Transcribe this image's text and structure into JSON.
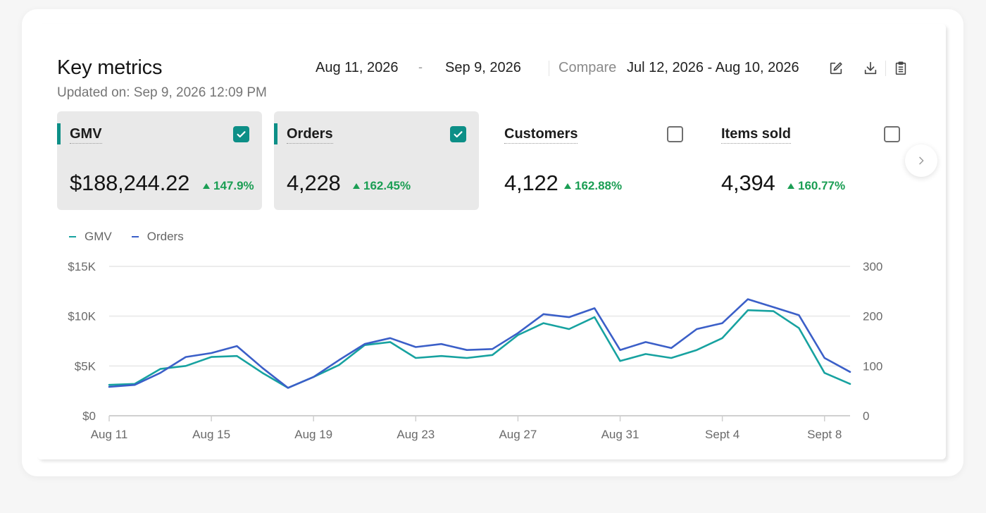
{
  "header": {
    "title": "Key metrics",
    "updated": "Updated on: Sep 9, 2026 12:09 PM",
    "date_start": "Aug 11, 2026",
    "date_separator": "-",
    "date_end": "Sep 9, 2026",
    "compare_label": "Compare",
    "compare_range": "Jul 12, 2026 - Aug 10, 2026",
    "icons": [
      "edit-icon",
      "download-icon",
      "clipboard-icon"
    ]
  },
  "metrics": [
    {
      "label": "GMV",
      "value": "$188,244.22",
      "change": "147.9%",
      "selected": true
    },
    {
      "label": "Orders",
      "value": "4,228",
      "change": "162.45%",
      "selected": true
    },
    {
      "label": "Customers",
      "value": "4,122",
      "change": "162.88%",
      "selected": false
    },
    {
      "label": "Items sold",
      "value": "4,394",
      "change": "160.77%",
      "selected": false
    }
  ],
  "colors": {
    "teal": "#17a2a0",
    "blue": "#3b5fc8",
    "accent": "#0d8f87",
    "positive": "#1b9e54"
  },
  "chart_data": {
    "type": "line",
    "legend": [
      "GMV",
      "Orders"
    ],
    "legend_position": "top-left",
    "x": [
      "Aug 11",
      "Aug 12",
      "Aug 13",
      "Aug 14",
      "Aug 15",
      "Aug 16",
      "Aug 17",
      "Aug 18",
      "Aug 19",
      "Aug 20",
      "Aug 21",
      "Aug 22",
      "Aug 23",
      "Aug 24",
      "Aug 25",
      "Aug 26",
      "Aug 27",
      "Aug 28",
      "Aug 29",
      "Aug 30",
      "Aug 31",
      "Sept 1",
      "Sept 2",
      "Sept 3",
      "Sept 4",
      "Sept 5",
      "Sept 6",
      "Sept 7",
      "Sept 8",
      "Sept 9"
    ],
    "x_tick_labels": [
      "Aug 11",
      "Aug 15",
      "Aug 19",
      "Aug 23",
      "Aug 27",
      "Aug 31",
      "Sept 4",
      "Sept 8"
    ],
    "left_axis": {
      "ticks": [
        "$0",
        "$5K",
        "$10K",
        "$15K"
      ],
      "range": [
        0,
        15000
      ]
    },
    "right_axis": {
      "ticks": [
        "0",
        "100",
        "200",
        "300"
      ],
      "range": [
        0,
        300
      ]
    },
    "grid": true,
    "series": [
      {
        "name": "GMV",
        "axis": "left",
        "color": "#17a2a0",
        "values": [
          3100,
          3200,
          4700,
          5000,
          5900,
          6000,
          4300,
          2800,
          3900,
          5100,
          7100,
          7400,
          5800,
          6000,
          5800,
          6100,
          8100,
          9300,
          8700,
          9900,
          5500,
          6200,
          5800,
          6600,
          7800,
          10600,
          10500,
          8800,
          4300,
          3200
        ]
      },
      {
        "name": "Orders",
        "axis": "left",
        "color": "#3b5fc8",
        "values": [
          2900,
          3100,
          4300,
          5900,
          6300,
          7000,
          4800,
          2800,
          3900,
          5600,
          7200,
          7800,
          6900,
          7200,
          6600,
          6700,
          8300,
          10200,
          9900,
          10800,
          6600,
          7400,
          6800,
          8700,
          9300,
          11700,
          10900,
          10100,
          5800,
          4400
        ]
      }
    ]
  }
}
